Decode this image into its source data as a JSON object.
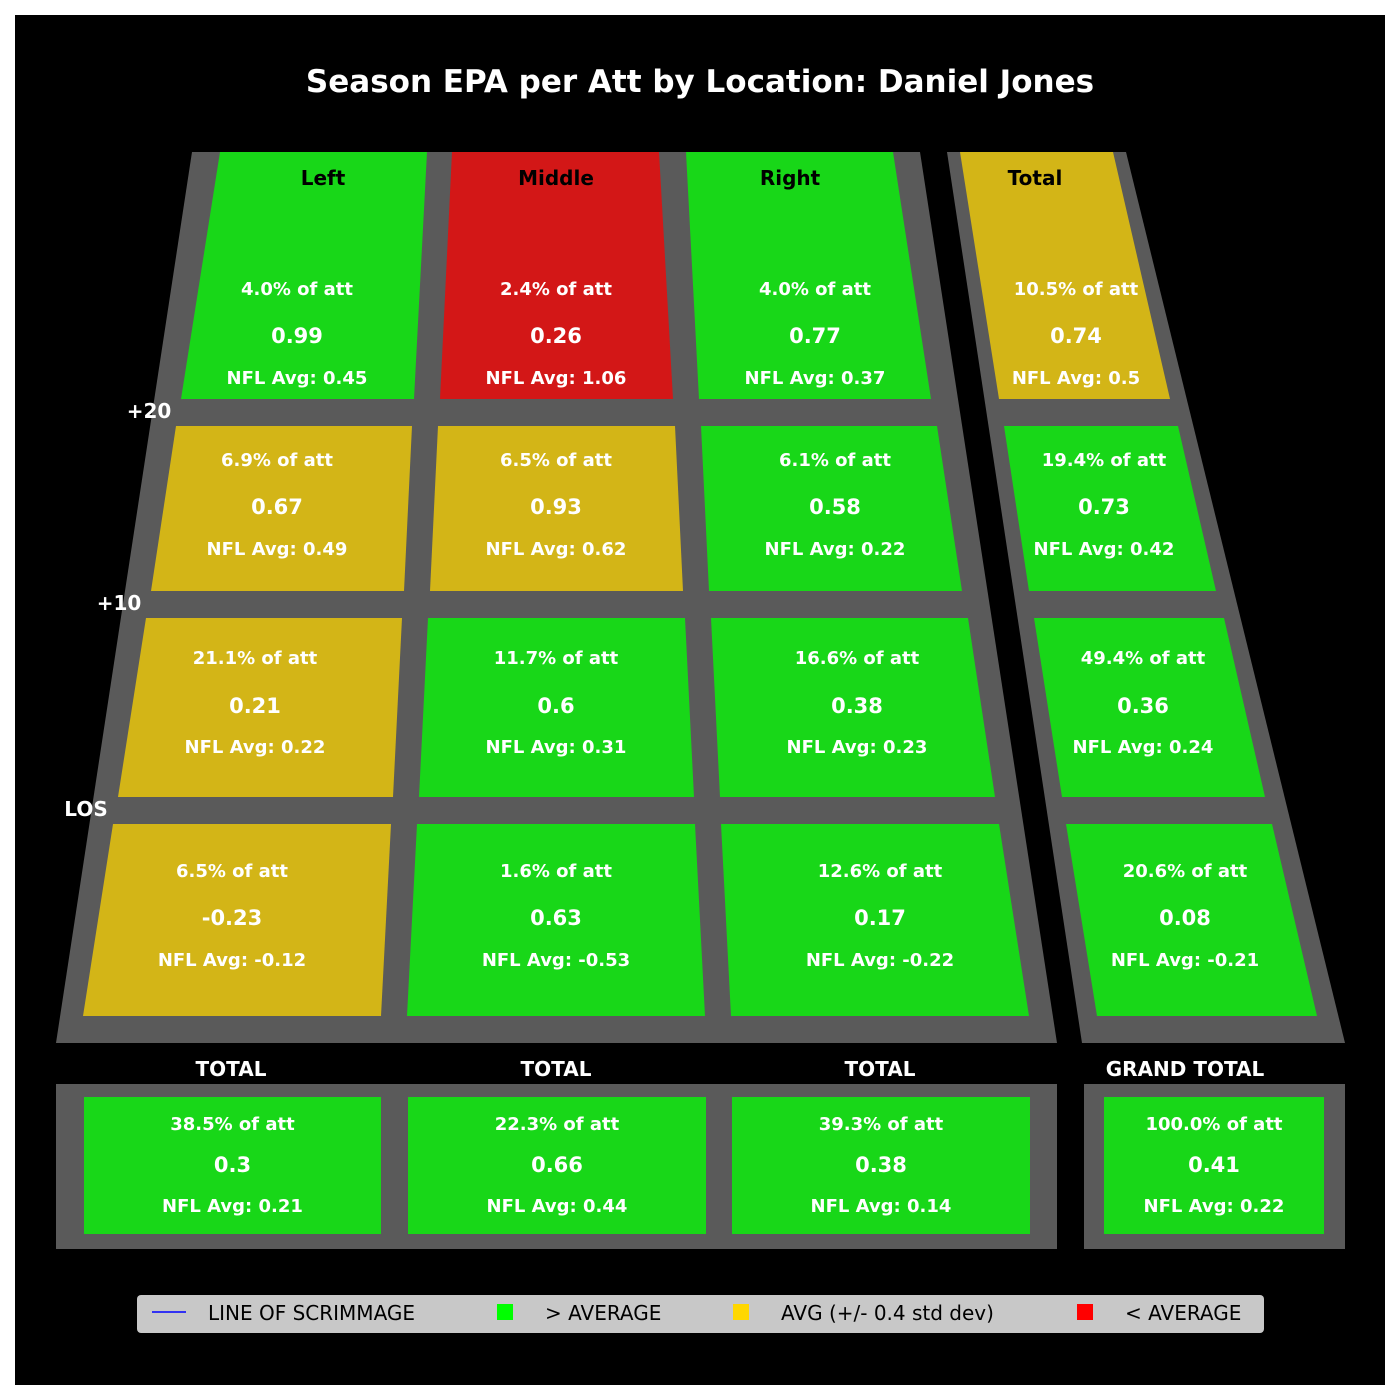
{
  "chart_data": {
    "type": "heatmap",
    "title": "Season EPA per Att by Location: Daniel Jones",
    "columns": [
      "Left",
      "Middle",
      "Right",
      "Total"
    ],
    "yard_labels": [
      "+20",
      "+10",
      "LOS"
    ],
    "rows": [
      {
        "cells": [
          {
            "pct": "4.0% of att",
            "value": "0.99",
            "avg": "NFL Avg: 0.45",
            "rating": "above"
          },
          {
            "pct": "2.4% of att",
            "value": "0.26",
            "avg": "NFL Avg: 1.06",
            "rating": "below"
          },
          {
            "pct": "4.0% of att",
            "value": "0.77",
            "avg": "NFL Avg: 0.37",
            "rating": "above"
          },
          {
            "pct": "10.5% of att",
            "value": "0.74",
            "avg": "NFL Avg: 0.5",
            "rating": "avg"
          }
        ]
      },
      {
        "cells": [
          {
            "pct": "6.9% of att",
            "value": "0.67",
            "avg": "NFL Avg: 0.49",
            "rating": "avg"
          },
          {
            "pct": "6.5% of att",
            "value": "0.93",
            "avg": "NFL Avg: 0.62",
            "rating": "avg"
          },
          {
            "pct": "6.1% of att",
            "value": "0.58",
            "avg": "NFL Avg: 0.22",
            "rating": "above"
          },
          {
            "pct": "19.4% of att",
            "value": "0.73",
            "avg": "NFL Avg: 0.42",
            "rating": "above"
          }
        ]
      },
      {
        "cells": [
          {
            "pct": "21.1% of att",
            "value": "0.21",
            "avg": "NFL Avg: 0.22",
            "rating": "avg"
          },
          {
            "pct": "11.7% of att",
            "value": "0.6",
            "avg": "NFL Avg: 0.31",
            "rating": "above"
          },
          {
            "pct": "16.6% of att",
            "value": "0.38",
            "avg": "NFL Avg: 0.23",
            "rating": "above"
          },
          {
            "pct": "49.4% of att",
            "value": "0.36",
            "avg": "NFL Avg: 0.24",
            "rating": "above"
          }
        ]
      },
      {
        "cells": [
          {
            "pct": "6.5% of att",
            "value": "-0.23",
            "avg": "NFL Avg: -0.12",
            "rating": "avg"
          },
          {
            "pct": "1.6% of att",
            "value": "0.63",
            "avg": "NFL Avg: -0.53",
            "rating": "above"
          },
          {
            "pct": "12.6% of att",
            "value": "0.17",
            "avg": "NFL Avg: -0.22",
            "rating": "above"
          },
          {
            "pct": "20.6% of att",
            "value": "0.08",
            "avg": "NFL Avg: -0.21",
            "rating": "above"
          }
        ]
      }
    ],
    "totals": [
      {
        "label": "TOTAL",
        "pct": "38.5% of att",
        "value": "0.3",
        "avg": "NFL Avg: 0.21",
        "rating": "above"
      },
      {
        "label": "TOTAL",
        "pct": "22.3% of att",
        "value": "0.66",
        "avg": "NFL Avg: 0.44",
        "rating": "above"
      },
      {
        "label": "TOTAL",
        "pct": "39.3% of att",
        "value": "0.38",
        "avg": "NFL Avg: 0.14",
        "rating": "above"
      },
      {
        "label": "GRAND TOTAL",
        "pct": "100.0% of att",
        "value": "0.41",
        "avg": "NFL Avg: 0.22",
        "rating": "above"
      }
    ],
    "legend": {
      "placement": "bottom",
      "items": [
        {
          "label": "LINE OF SCRIMMAGE",
          "kind": "line",
          "color": "#0000ff"
        },
        {
          "label": "> AVERAGE",
          "kind": "square",
          "color": "#00ff00"
        },
        {
          "label": "AVG (+/- 0.4 std dev)",
          "kind": "square",
          "color": "#ffd700"
        },
        {
          "label": "< AVERAGE",
          "kind": "square",
          "color": "#ff0000"
        }
      ]
    },
    "colors": {
      "above": "#18d718",
      "avg": "#d3b517",
      "below": "#d31717",
      "field": "#5a5a5a",
      "background": "#000000"
    }
  }
}
